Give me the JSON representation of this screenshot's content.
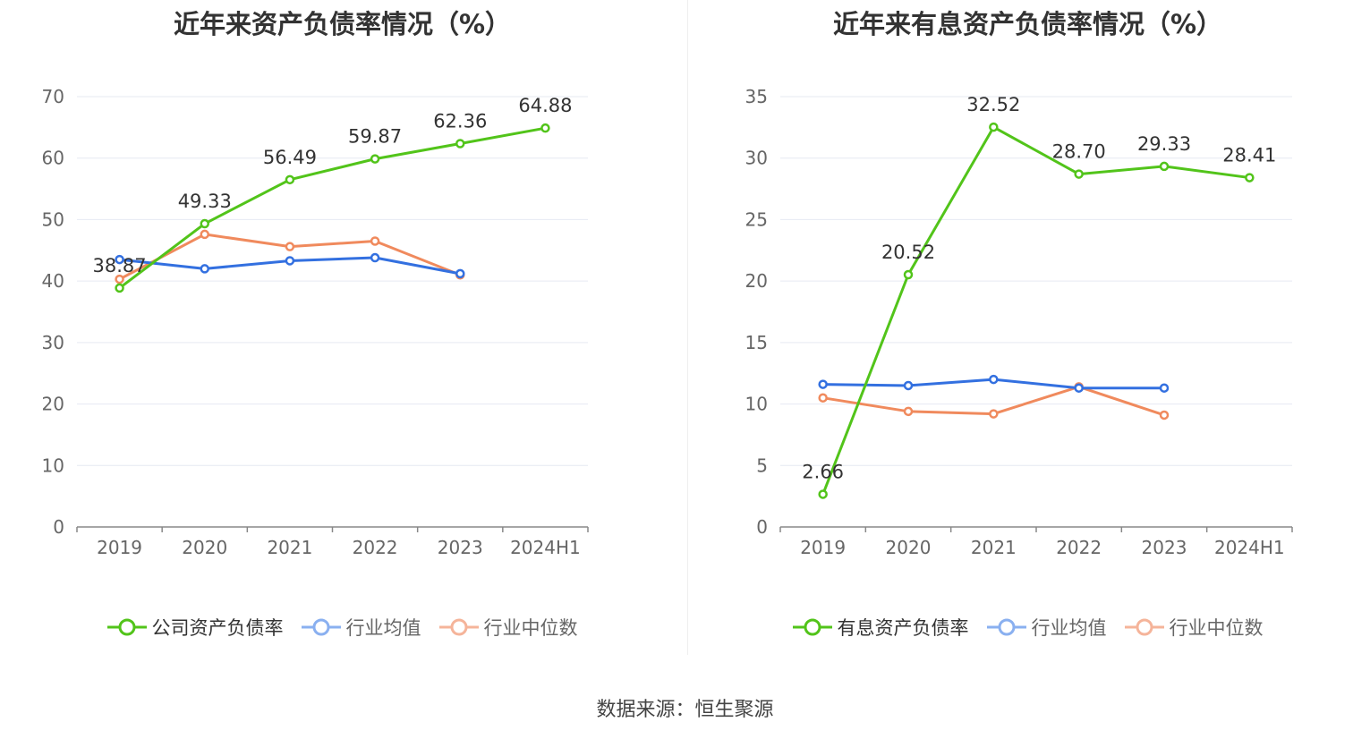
{
  "charts": [
    {
      "title": "近年来资产负债率情况（%）",
      "legend": [
        {
          "label": "公司资产负债率",
          "color": "#52c41a"
        },
        {
          "label": "行业均值",
          "color": "#3370e0"
        },
        {
          "label": "行业中位数",
          "color": "#f08a5d"
        }
      ]
    },
    {
      "title": "近年来有息资产负债率情况（%）",
      "legend": [
        {
          "label": "有息资产负债率",
          "color": "#52c41a"
        },
        {
          "label": "行业均值",
          "color": "#3370e0"
        },
        {
          "label": "行业中位数",
          "color": "#f08a5d"
        }
      ]
    }
  ],
  "source": "数据来源：恒生聚源",
  "chart_data": [
    {
      "type": "line",
      "title": "近年来资产负债率情况（%）",
      "categories": [
        "2019",
        "2020",
        "2021",
        "2022",
        "2023",
        "2024H1"
      ],
      "ylim": [
        0,
        70
      ],
      "yticks": [
        0,
        10,
        20,
        30,
        40,
        50,
        60,
        70
      ],
      "grid": true,
      "legend_position": "bottom",
      "series": [
        {
          "name": "公司资产负债率",
          "color": "#52c41a",
          "labels": true,
          "values": [
            38.87,
            49.33,
            56.49,
            59.87,
            62.36,
            64.88
          ]
        },
        {
          "name": "行业均值",
          "color": "#3370e0",
          "labels": false,
          "values": [
            43.5,
            42.0,
            43.3,
            43.8,
            41.2,
            null
          ]
        },
        {
          "name": "行业中位数",
          "color": "#f08a5d",
          "labels": false,
          "values": [
            40.3,
            47.6,
            45.6,
            46.5,
            41.0,
            null
          ]
        }
      ]
    },
    {
      "type": "line",
      "title": "近年来有息资产负债率情况（%）",
      "categories": [
        "2019",
        "2020",
        "2021",
        "2022",
        "2023",
        "2024H1"
      ],
      "ylim": [
        0,
        35
      ],
      "yticks": [
        0,
        5,
        10,
        15,
        20,
        25,
        30,
        35
      ],
      "grid": true,
      "legend_position": "bottom",
      "series": [
        {
          "name": "有息资产负债率",
          "color": "#52c41a",
          "labels": true,
          "values": [
            2.66,
            20.52,
            32.52,
            28.7,
            29.33,
            28.41
          ]
        },
        {
          "name": "行业均值",
          "color": "#3370e0",
          "labels": false,
          "values": [
            11.6,
            11.5,
            12.0,
            11.3,
            11.3,
            null
          ]
        },
        {
          "name": "行业中位数",
          "color": "#f08a5d",
          "labels": false,
          "values": [
            10.5,
            9.4,
            9.2,
            11.4,
            9.1,
            null
          ]
        }
      ]
    }
  ]
}
